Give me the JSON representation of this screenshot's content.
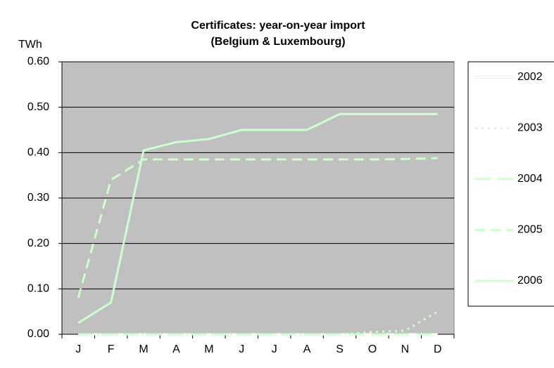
{
  "chart_data": {
    "type": "line",
    "title": "Certificates: year-on-year import",
    "subtitle": "(Belgium & Luxembourg)",
    "y_label": "TWh",
    "categories": [
      "J",
      "F",
      "M",
      "A",
      "M",
      "J",
      "J",
      "A",
      "S",
      "O",
      "N",
      "D"
    ],
    "series": [
      {
        "name": "2002",
        "color": "#ffffff",
        "dash": "solid",
        "values": [
          0,
          0,
          0,
          0,
          0,
          0,
          0,
          0,
          0,
          0,
          0,
          0
        ]
      },
      {
        "name": "2003",
        "color": "#ccffcc",
        "dash": "dot",
        "values": [
          0,
          0,
          0,
          0,
          0,
          0,
          0,
          0,
          0,
          0.005,
          0.008,
          0.05
        ]
      },
      {
        "name": "2004",
        "color": "#ccffcc",
        "dash": "longdash",
        "values": [
          0,
          0,
          0,
          0,
          0,
          0,
          0,
          0,
          0,
          0,
          0,
          0
        ]
      },
      {
        "name": "2005",
        "color": "#ccffcc",
        "dash": "dash",
        "values": [
          0.08,
          0.34,
          0.385,
          0.385,
          0.385,
          0.385,
          0.385,
          0.385,
          0.385,
          0.385,
          0.386,
          0.388
        ]
      },
      {
        "name": "2006",
        "color": "#ccffcc",
        "dash": "solid",
        "values": [
          0.025,
          0.07,
          0.405,
          0.423,
          0.43,
          0.45,
          0.45,
          0.45,
          0.485,
          0.485,
          0.485,
          0.485
        ]
      }
    ],
    "ylim": [
      0,
      0.6
    ],
    "yticks": [
      {
        "value": 0,
        "label": "0.00"
      },
      {
        "value": 0.1,
        "label": "0.10"
      },
      {
        "value": 0.2,
        "label": "0.20"
      },
      {
        "value": 0.3,
        "label": "0.30"
      },
      {
        "value": 0.4,
        "label": "0.40"
      },
      {
        "value": 0.5,
        "label": "0.50"
      },
      {
        "value": 0.6,
        "label": "0.60"
      }
    ],
    "grid": true,
    "plot_background": "#c0c0c0",
    "legend": "right"
  }
}
